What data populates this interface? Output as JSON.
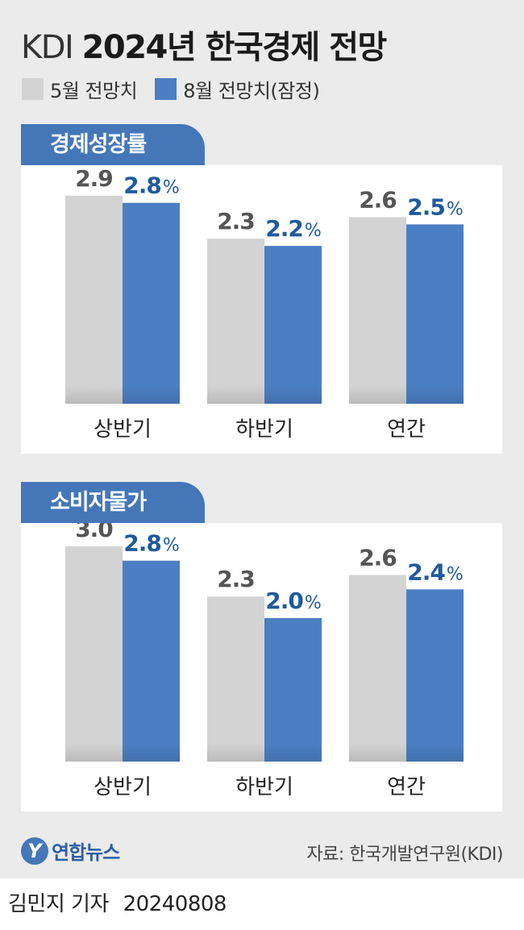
{
  "title_light": "KDI",
  "title_bold": "2024년 한국경제 전망",
  "legend": [
    {
      "label": "5월 전망치",
      "color": "#d3d3d3"
    },
    {
      "label": "8월 전망치(잠정)",
      "color": "#4b7fc3"
    }
  ],
  "colors": {
    "may": "#d3d3d3",
    "aug": "#4b7fc3",
    "may_label": "#555555",
    "aug_label": "#1f5a9c"
  },
  "chart_data": [
    {
      "type": "bar",
      "title": "경제성장률",
      "unit": "%",
      "categories": [
        "상반기",
        "하반기",
        "연간"
      ],
      "series": [
        {
          "name": "5월 전망치",
          "values": [
            2.9,
            2.3,
            2.6
          ]
        },
        {
          "name": "8월 전망치(잠정)",
          "values": [
            2.8,
            2.2,
            2.5
          ]
        }
      ],
      "ylim": [
        0,
        3.1
      ]
    },
    {
      "type": "bar",
      "title": "소비자물가",
      "unit": "%",
      "categories": [
        "상반기",
        "하반기",
        "연간"
      ],
      "series": [
        {
          "name": "5월 전망치",
          "values": [
            3.0,
            2.3,
            2.6
          ]
        },
        {
          "name": "8월 전망치(잠정)",
          "values": [
            2.8,
            2.0,
            2.4
          ]
        }
      ],
      "ylim": [
        0,
        3.1
      ]
    }
  ],
  "footer": {
    "logo_mark": "Y",
    "logo_name": "연합뉴스",
    "source": "자료: 한국개발연구원(KDI)"
  },
  "byline": {
    "author": "김민지 기자",
    "date": "20240808"
  }
}
